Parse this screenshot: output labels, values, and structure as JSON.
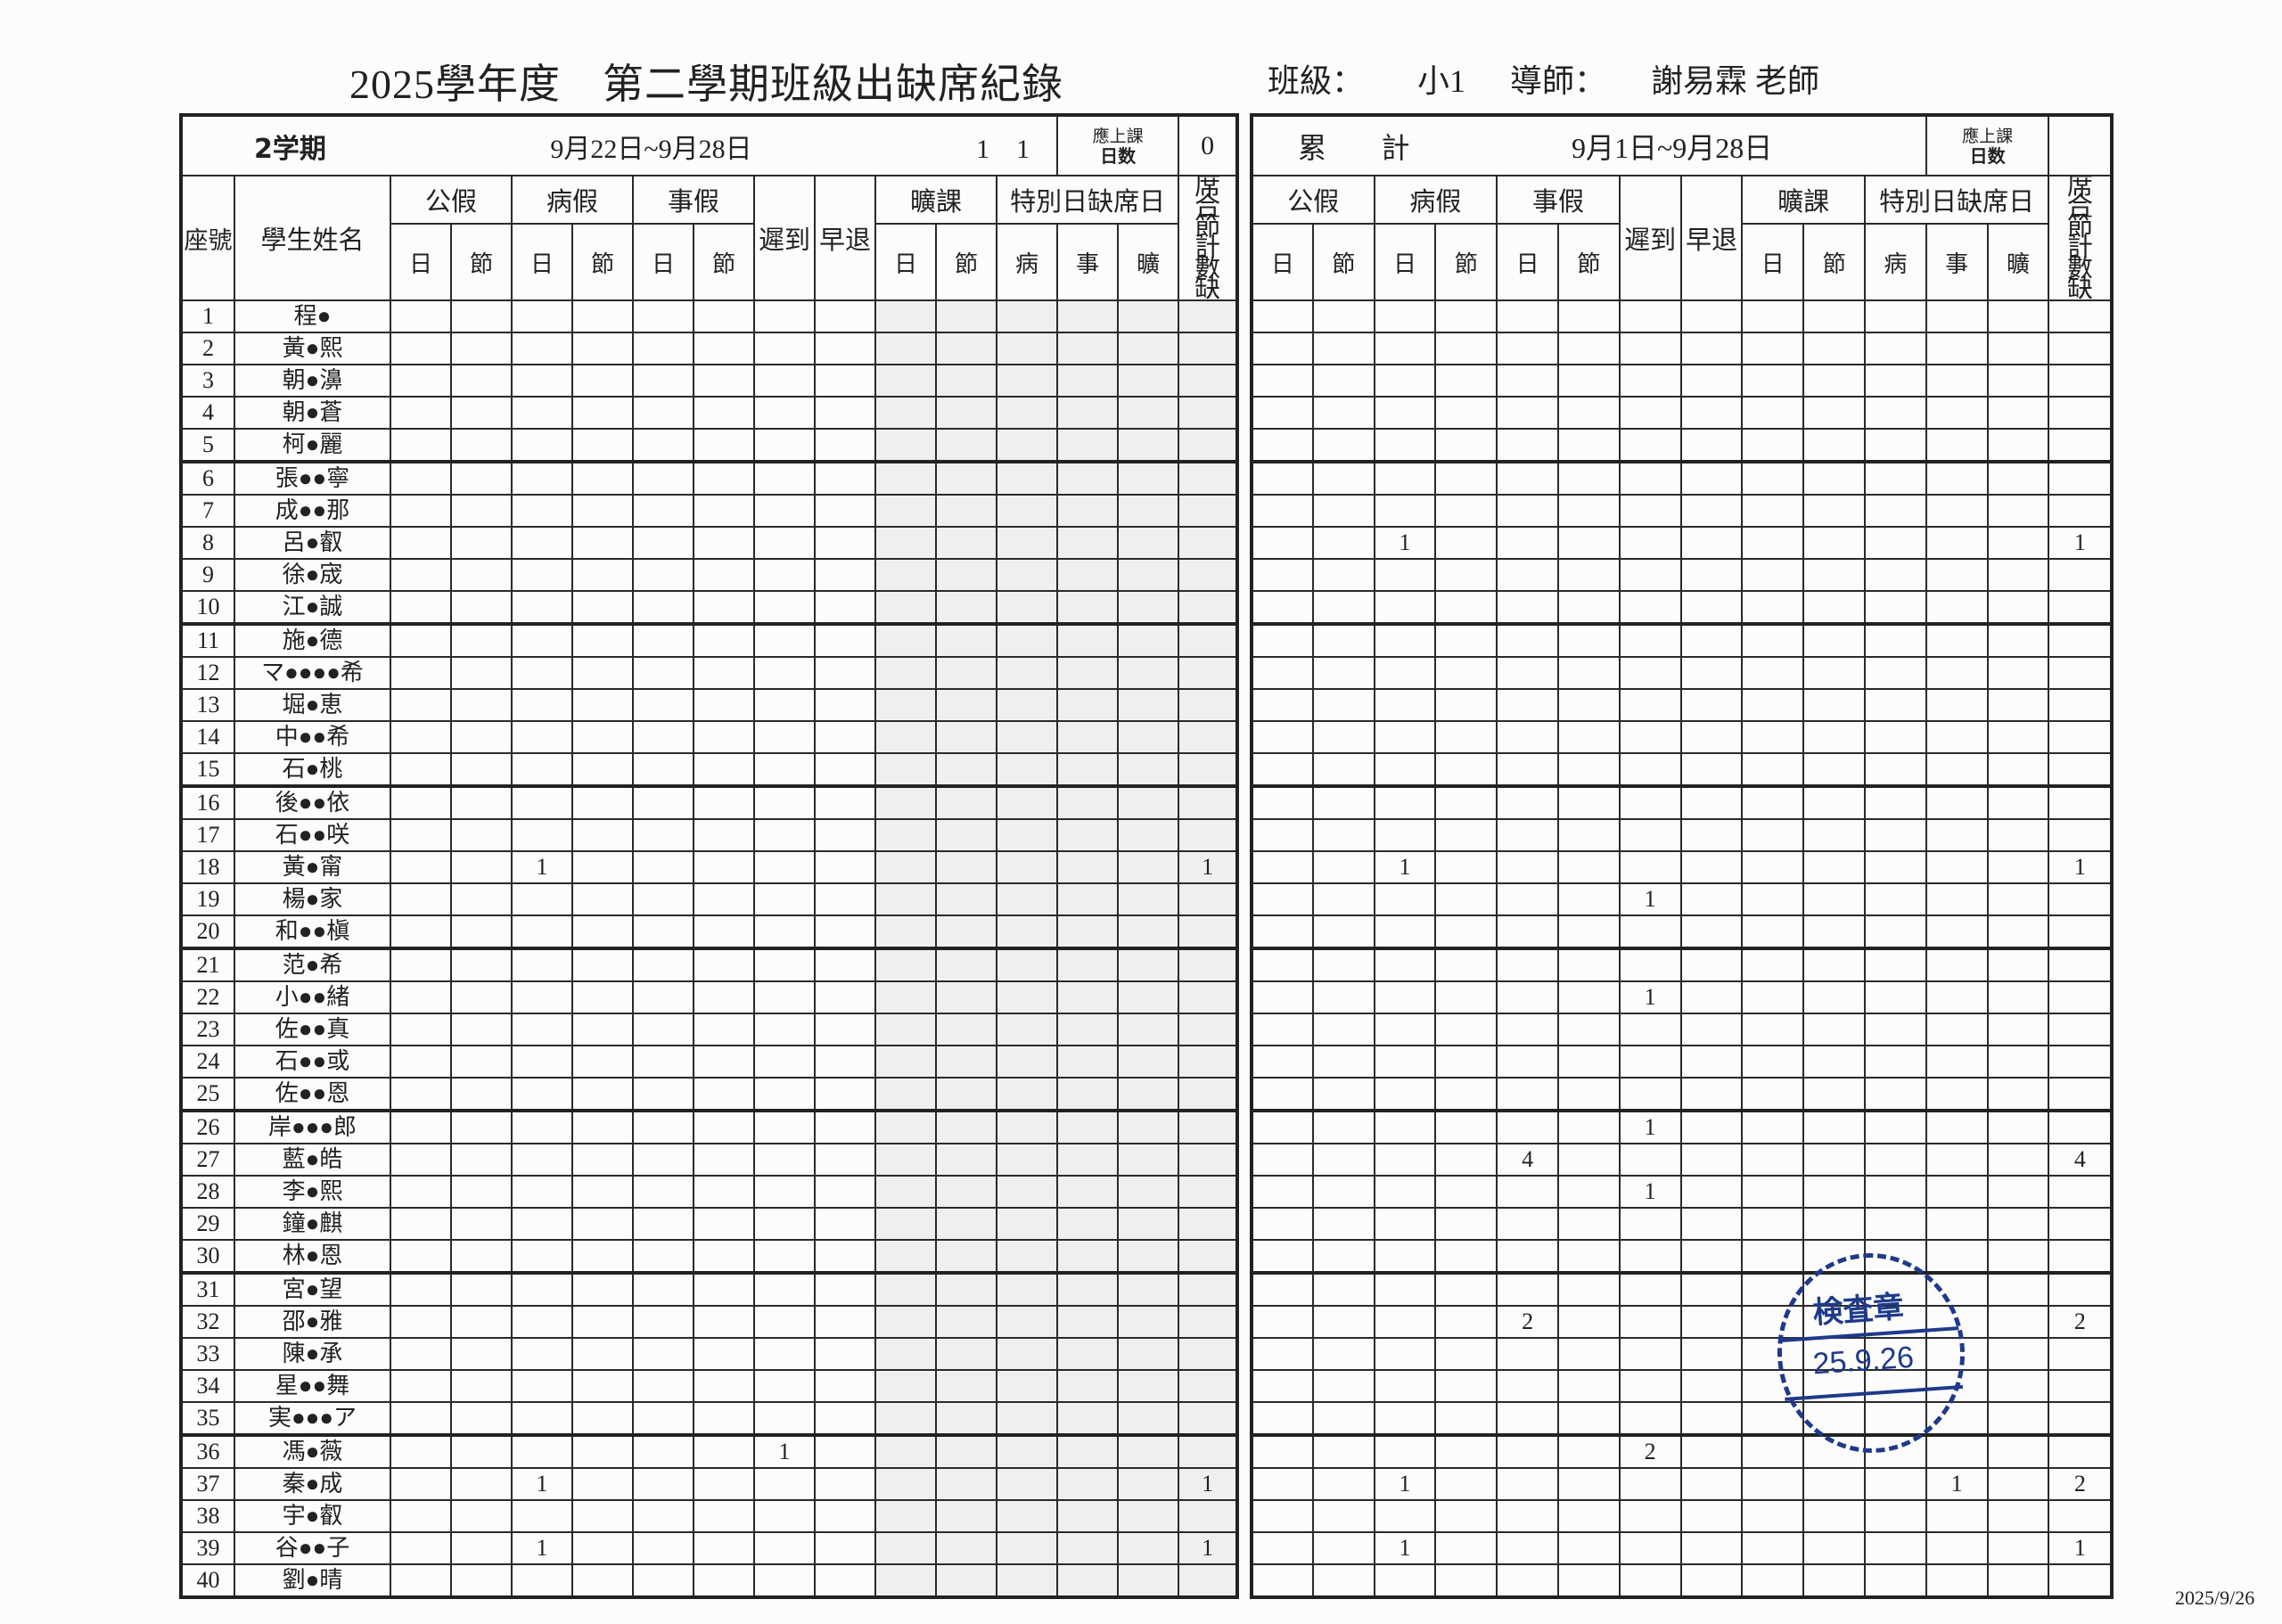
{
  "header": {
    "title": "2025學年度　第二學期班級出缺席紀錄",
    "class_label": "班級：",
    "class_value": "小1",
    "teacher_label": "導師：",
    "teacher_value": "謝易霖 老師"
  },
  "weekly": {
    "term": "2学期",
    "period": "9月22日~9月28日",
    "counts": "1　1",
    "school_days_label_top": "應上課",
    "school_days_label_bottom": "日数",
    "school_days_value": "0"
  },
  "cumulative": {
    "label_a": "累",
    "label_b": "計",
    "period": "9月1日~9月28日",
    "school_days_label_top": "應上課",
    "school_days_label_bottom": "日数",
    "school_days_value": ""
  },
  "columns": {
    "seat": "座號",
    "name": "學生姓名",
    "groups": [
      "公假",
      "病假",
      "事假",
      "遲到",
      "早退",
      "曠課",
      "特別日缺席日"
    ],
    "sub": [
      "日",
      "節",
      "日",
      "節",
      "日",
      "節",
      "日",
      "節",
      "病",
      "事",
      "曠"
    ],
    "total": "席合節計數缺"
  },
  "students": [
    {
      "seat": "1",
      "name": "程●",
      "weekly": [],
      "cumulative": []
    },
    {
      "seat": "2",
      "name": "黃●熙",
      "weekly": [],
      "cumulative": []
    },
    {
      "seat": "3",
      "name": "朝●濞",
      "weekly": [],
      "cumulative": []
    },
    {
      "seat": "4",
      "name": "朝●蒼",
      "weekly": [],
      "cumulative": []
    },
    {
      "seat": "5",
      "name": "柯●麗",
      "weekly": [],
      "cumulative": []
    },
    {
      "seat": "6",
      "name": "張●●寧",
      "weekly": [],
      "cumulative": []
    },
    {
      "seat": "7",
      "name": "成●●那",
      "weekly": [],
      "cumulative": []
    },
    {
      "seat": "8",
      "name": "呂●叡",
      "weekly": [],
      "cumulative": [
        "",
        "",
        "1",
        "",
        "",
        "",
        "",
        "",
        "",
        "",
        "",
        "",
        "",
        "1"
      ]
    },
    {
      "seat": "9",
      "name": "徐●宬",
      "weekly": [],
      "cumulative": []
    },
    {
      "seat": "10",
      "name": "江●誠",
      "weekly": [],
      "cumulative": []
    },
    {
      "seat": "11",
      "name": "施●德",
      "weekly": [],
      "cumulative": []
    },
    {
      "seat": "12",
      "name": "マ●●●●希",
      "weekly": [],
      "cumulative": []
    },
    {
      "seat": "13",
      "name": "堀●恵",
      "weekly": [],
      "cumulative": []
    },
    {
      "seat": "14",
      "name": "中●●希",
      "weekly": [],
      "cumulative": []
    },
    {
      "seat": "15",
      "name": "石●桃",
      "weekly": [],
      "cumulative": []
    },
    {
      "seat": "16",
      "name": "後●●依",
      "weekly": [],
      "cumulative": []
    },
    {
      "seat": "17",
      "name": "石●●咲",
      "weekly": [],
      "cumulative": []
    },
    {
      "seat": "18",
      "name": "黃●甯",
      "weekly": [
        "",
        "",
        "1",
        "",
        "",
        "",
        "",
        "",
        "",
        "",
        "",
        "",
        "",
        "1"
      ],
      "cumulative": [
        "",
        "",
        "1",
        "",
        "",
        "",
        "",
        "",
        "",
        "",
        "",
        "",
        "",
        "1"
      ]
    },
    {
      "seat": "19",
      "name": "楊●家",
      "weekly": [],
      "cumulative": [
        "",
        "",
        "",
        "",
        "",
        "",
        "1",
        "",
        "",
        "",
        "",
        "",
        "",
        ""
      ]
    },
    {
      "seat": "20",
      "name": "和●●槇",
      "weekly": [],
      "cumulative": []
    },
    {
      "seat": "21",
      "name": "范●希",
      "weekly": [],
      "cumulative": []
    },
    {
      "seat": "22",
      "name": "小●●緒",
      "weekly": [],
      "cumulative": [
        "",
        "",
        "",
        "",
        "",
        "",
        "1",
        "",
        "",
        "",
        "",
        "",
        "",
        ""
      ]
    },
    {
      "seat": "23",
      "name": "佐●●真",
      "weekly": [],
      "cumulative": []
    },
    {
      "seat": "24",
      "name": "石●●或",
      "weekly": [],
      "cumulative": []
    },
    {
      "seat": "25",
      "name": "佐●●恩",
      "weekly": [],
      "cumulative": []
    },
    {
      "seat": "26",
      "name": "岸●●●郎",
      "weekly": [],
      "cumulative": [
        "",
        "",
        "",
        "",
        "",
        "",
        "1",
        "",
        "",
        "",
        "",
        "",
        "",
        ""
      ]
    },
    {
      "seat": "27",
      "name": "藍●皓",
      "weekly": [],
      "cumulative": [
        "",
        "",
        "",
        "",
        "4",
        "",
        "",
        "",
        "",
        "",
        "",
        "",
        "",
        "4"
      ]
    },
    {
      "seat": "28",
      "name": "李●熙",
      "weekly": [],
      "cumulative": [
        "",
        "",
        "",
        "",
        "",
        "",
        "1",
        "",
        "",
        "",
        "",
        "",
        "",
        ""
      ]
    },
    {
      "seat": "29",
      "name": "鐘●麒",
      "weekly": [],
      "cumulative": []
    },
    {
      "seat": "30",
      "name": "林●恩",
      "weekly": [],
      "cumulative": []
    },
    {
      "seat": "31",
      "name": "宮●望",
      "weekly": [],
      "cumulative": []
    },
    {
      "seat": "32",
      "name": "邵●雅",
      "weekly": [],
      "cumulative": [
        "",
        "",
        "",
        "",
        "2",
        "",
        "",
        "",
        "",
        "",
        "",
        "",
        "",
        "2"
      ]
    },
    {
      "seat": "33",
      "name": "陳●承",
      "weekly": [],
      "cumulative": []
    },
    {
      "seat": "34",
      "name": "星●●舞",
      "weekly": [],
      "cumulative": []
    },
    {
      "seat": "35",
      "name": "実●●●ア",
      "weekly": [],
      "cumulative": []
    },
    {
      "seat": "36",
      "name": "馮●薇",
      "weekly": [
        "",
        "",
        "",
        "",
        "",
        "",
        "1",
        "",
        "",
        "",
        "",
        "",
        "",
        ""
      ],
      "cumulative": [
        "",
        "",
        "",
        "",
        "",
        "",
        "2",
        "",
        "",
        "",
        "",
        "",
        "",
        ""
      ]
    },
    {
      "seat": "37",
      "name": "秦●成",
      "weekly": [
        "",
        "",
        "1",
        "",
        "",
        "",
        "",
        "",
        "",
        "",
        "",
        "",
        "",
        "1"
      ],
      "cumulative": [
        "",
        "",
        "1",
        "",
        "",
        "",
        "",
        "",
        "",
        "",
        "",
        "1",
        "",
        "2"
      ]
    },
    {
      "seat": "38",
      "name": "宇●叡",
      "weekly": [],
      "cumulative": []
    },
    {
      "seat": "39",
      "name": "谷●●子",
      "weekly": [
        "",
        "",
        "1",
        "",
        "",
        "",
        "",
        "",
        "",
        "",
        "",
        "",
        "",
        "1"
      ],
      "cumulative": [
        "",
        "",
        "1",
        "",
        "",
        "",
        "",
        "",
        "",
        "",
        "",
        "",
        "",
        "1"
      ]
    },
    {
      "seat": "40",
      "name": "劉●晴",
      "weekly": [],
      "cumulative": []
    }
  ],
  "stamp": {
    "text": "検査章",
    "date": "25.9.26",
    "color": "#1f3a8a"
  },
  "footer_date": "2025/9/26"
}
